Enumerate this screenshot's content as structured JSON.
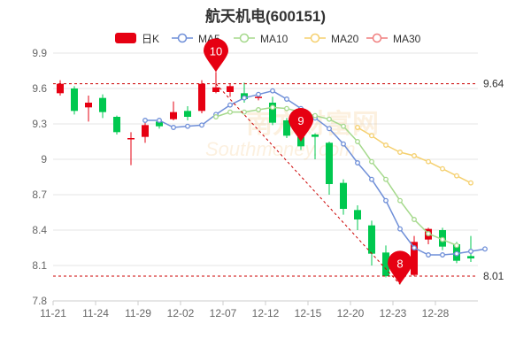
{
  "title": "航天机电(600151)",
  "watermark": {
    "main": "南方财富网",
    "sub": "Southmoney.com"
  },
  "chart_data": {
    "type": "candlestick",
    "title": "航天机电(600151)",
    "legend": [
      {
        "name": "日K",
        "color": "#e60012"
      },
      {
        "name": "MA5",
        "color": "#6f8fd8"
      },
      {
        "name": "MA10",
        "color": "#a5d98c"
      },
      {
        "name": "MA20",
        "color": "#f5d06f"
      },
      {
        "name": "MA30",
        "color": "#f07f7f"
      }
    ],
    "up_color": "#e60012",
    "down_color": "#00c84f",
    "ylim": [
      7.8,
      9.9
    ],
    "y_ticks": [
      "7.8",
      "8.1",
      "8.4",
      "8.7",
      "9",
      "9.3",
      "9.6",
      "9.9"
    ],
    "x_ticks": [
      "11-21",
      "11-24",
      "11-29",
      "12-02",
      "12-07",
      "12-12",
      "12-15",
      "12-20",
      "12-23",
      "12-28"
    ],
    "x_tick_index": [
      0,
      3,
      6,
      9,
      12,
      15,
      18,
      21,
      24,
      27
    ],
    "candles": [
      {
        "o": 9.56,
        "c": 9.64,
        "h": 9.67,
        "l": 9.54
      },
      {
        "o": 9.6,
        "c": 9.41,
        "h": 9.62,
        "l": 9.38
      },
      {
        "o": 9.44,
        "c": 9.48,
        "h": 9.54,
        "l": 9.32
      },
      {
        "o": 9.52,
        "c": 9.4,
        "h": 9.55,
        "l": 9.35
      },
      {
        "o": 9.36,
        "c": 9.23,
        "h": 9.37,
        "l": 9.21
      },
      {
        "o": 9.17,
        "c": 9.18,
        "h": 9.23,
        "l": 8.95
      },
      {
        "o": 9.19,
        "c": 9.29,
        "h": 9.31,
        "l": 9.14
      },
      {
        "o": 9.32,
        "c": 9.28,
        "h": 9.34,
        "l": 9.26
      },
      {
        "o": 9.34,
        "c": 9.4,
        "h": 9.49,
        "l": 9.33
      },
      {
        "o": 9.41,
        "c": 9.36,
        "h": 9.45,
        "l": 9.33
      },
      {
        "o": 9.41,
        "c": 9.64,
        "h": 9.67,
        "l": 9.39
      },
      {
        "o": 9.57,
        "c": 9.61,
        "h": 9.74,
        "l": 9.56
      },
      {
        "o": 9.57,
        "c": 9.62,
        "h": 9.64,
        "l": 9.53
      },
      {
        "o": 9.56,
        "c": 9.51,
        "h": 9.65,
        "l": 9.48
      },
      {
        "o": 9.52,
        "c": 9.53,
        "h": 9.56,
        "l": 9.5
      },
      {
        "o": 9.48,
        "c": 9.31,
        "h": 9.53,
        "l": 9.29
      },
      {
        "o": 9.33,
        "c": 9.2,
        "h": 9.35,
        "l": 9.18
      },
      {
        "o": 9.19,
        "c": 9.11,
        "h": 9.28,
        "l": 9.08
      },
      {
        "o": 9.21,
        "c": 9.19,
        "h": 9.22,
        "l": 9.0
      },
      {
        "o": 9.14,
        "c": 8.79,
        "h": 9.15,
        "l": 8.7
      },
      {
        "o": 8.8,
        "c": 8.58,
        "h": 8.83,
        "l": 8.53
      },
      {
        "o": 8.57,
        "c": 8.49,
        "h": 8.61,
        "l": 8.4
      },
      {
        "o": 8.44,
        "c": 8.2,
        "h": 8.48,
        "l": 8.1
      },
      {
        "o": 8.21,
        "c": 8.01,
        "h": 8.27,
        "l": 8.0
      },
      {
        "o": 8.12,
        "c": 8.02,
        "h": 8.2,
        "l": 7.94
      },
      {
        "o": 8.02,
        "c": 8.3,
        "h": 8.35,
        "l": 8.01
      },
      {
        "o": 8.32,
        "c": 8.41,
        "h": 8.42,
        "l": 8.28
      },
      {
        "o": 8.4,
        "c": 8.26,
        "h": 8.42,
        "l": 8.23
      },
      {
        "o": 8.28,
        "c": 8.14,
        "h": 8.3,
        "l": 8.12
      },
      {
        "o": 8.18,
        "c": 8.16,
        "h": 8.35,
        "l": 8.13
      }
    ],
    "ma": [
      {
        "name": "MA5",
        "color": "#6f8fd8",
        "start": 6,
        "values": [
          9.33,
          9.33,
          9.27,
          9.28,
          9.29,
          9.38,
          9.46,
          9.52,
          9.55,
          9.58,
          9.51,
          9.43,
          9.35,
          9.26,
          9.13,
          8.97,
          8.83,
          8.65,
          8.41,
          8.25,
          8.19,
          8.19,
          8.2,
          8.22,
          8.24
        ]
      },
      {
        "name": "MA10",
        "color": "#a5d98c",
        "start": 11,
        "values": [
          9.36,
          9.4,
          9.4,
          9.42,
          9.44,
          9.43,
          9.4,
          9.37,
          9.34,
          9.28,
          9.15,
          8.98,
          8.83,
          8.65,
          8.49,
          8.37,
          8.32,
          8.27
        ]
      },
      {
        "name": "MA20",
        "color": "#f5d06f",
        "start": 21,
        "values": [
          9.27,
          9.2,
          9.12,
          9.06,
          9.03,
          8.98,
          8.92,
          8.86,
          8.8
        ]
      }
    ],
    "ref_lines": [
      9.64,
      8.01
    ],
    "ref_labels": [
      "9.64",
      "8.01"
    ],
    "markers": [
      {
        "label": "10",
        "index": 11,
        "value": 9.74
      },
      {
        "label": "9",
        "index": 17,
        "value": 9.15
      },
      {
        "label": "8",
        "index": 24,
        "value": 7.94
      }
    ],
    "grid": true
  }
}
